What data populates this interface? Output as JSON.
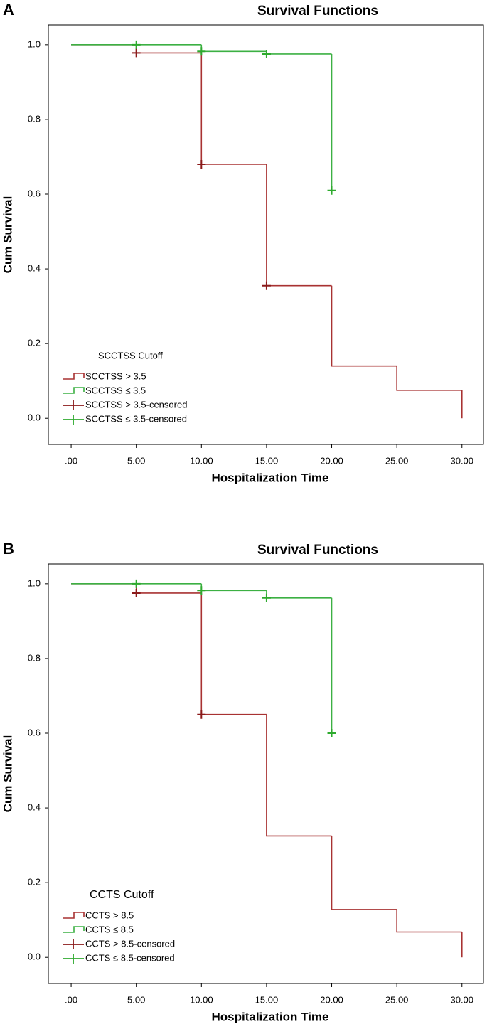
{
  "chart_data": [
    {
      "type": "survival",
      "panel": "A",
      "title": "Survival Functions",
      "x_label": "Hospitalization Time",
      "y_label": "Cum Survival",
      "xlim": [
        -1.75,
        31.65
      ],
      "xticks": [
        {
          "value": 0,
          "label": ".00"
        },
        {
          "value": 5,
          "label": "5.00"
        },
        {
          "value": 10,
          "label": "10.00"
        },
        {
          "value": 15,
          "label": "15.00"
        },
        {
          "value": 20,
          "label": "20.00"
        },
        {
          "value": 25,
          "label": "25.00"
        },
        {
          "value": 30,
          "label": "30.00"
        }
      ],
      "ylim": [
        -0.07,
        1.053
      ],
      "yticks": [
        {
          "value": 0,
          "label": "0.0"
        },
        0.2,
        0.4,
        0.6,
        0.8,
        {
          "value": 1,
          "label": "1.0"
        }
      ],
      "legend_title": "SCCTSS Cutoff",
      "series": [
        {
          "name": "SCCTSS > 3.5",
          "style": "step",
          "color": "#a83232",
          "x": [
            0,
            5,
            10,
            15,
            20,
            25,
            30
          ],
          "values": [
            1,
            0.978,
            0.68,
            0.355,
            0.14,
            0.075,
            0
          ]
        },
        {
          "name": "SCCTSS ≤ 3.5",
          "style": "step",
          "color": "#3cb043",
          "x": [
            0,
            10,
            15,
            20
          ],
          "values": [
            1,
            0.982,
            0.975,
            0.61
          ]
        },
        {
          "name": "SCCTSS > 3.5-censored",
          "style": "censored",
          "color": "#8b1a1a",
          "x": [
            5,
            10,
            15
          ],
          "values": [
            0.978,
            0.68,
            0.355
          ]
        },
        {
          "name": "SCCTSS ≤ 3.5-censored",
          "style": "censored",
          "color": "#2eaa2e",
          "x": [
            5,
            10,
            15,
            20
          ],
          "values": [
            1,
            0.982,
            0.975,
            0.61
          ]
        }
      ]
    },
    {
      "type": "survival",
      "panel": "B",
      "title": "Survival Functions",
      "x_label": "Hospitalization Time",
      "y_label": "Cum Survival",
      "xlim": [
        -1.75,
        31.65
      ],
      "xticks": [
        {
          "value": 0,
          "label": ".00"
        },
        {
          "value": 5,
          "label": "5.00"
        },
        {
          "value": 10,
          "label": "10.00"
        },
        {
          "value": 15,
          "label": "15.00"
        },
        {
          "value": 20,
          "label": "20.00"
        },
        {
          "value": 25,
          "label": "25.00"
        },
        {
          "value": 30,
          "label": "30.00"
        }
      ],
      "ylim": [
        -0.07,
        1.053
      ],
      "yticks": [
        {
          "value": 0,
          "label": "0.0"
        },
        0.2,
        0.4,
        0.6,
        0.8,
        {
          "value": 1,
          "label": "1.0"
        }
      ],
      "legend_title": "CCTS Cutoff",
      "series": [
        {
          "name": "CCTS > 8.5",
          "style": "step",
          "color": "#a83232",
          "x": [
            0,
            5,
            10,
            15,
            20,
            25,
            30
          ],
          "values": [
            1,
            0.975,
            0.65,
            0.325,
            0.128,
            0.068,
            0
          ]
        },
        {
          "name": "CCTS ≤ 8.5",
          "style": "step",
          "color": "#3cb043",
          "x": [
            0,
            10,
            15,
            20
          ],
          "values": [
            1,
            0.982,
            0.962,
            0.6
          ]
        },
        {
          "name": "CCTS > 8.5-censored",
          "style": "censored",
          "color": "#8b1a1a",
          "x": [
            5,
            10
          ],
          "values": [
            0.975,
            0.65
          ]
        },
        {
          "name": "CCTS ≤ 8.5-censored",
          "style": "censored",
          "color": "#2eaa2e",
          "x": [
            5,
            10,
            15,
            20
          ],
          "values": [
            1,
            0.982,
            0.962,
            0.6
          ]
        }
      ]
    }
  ]
}
